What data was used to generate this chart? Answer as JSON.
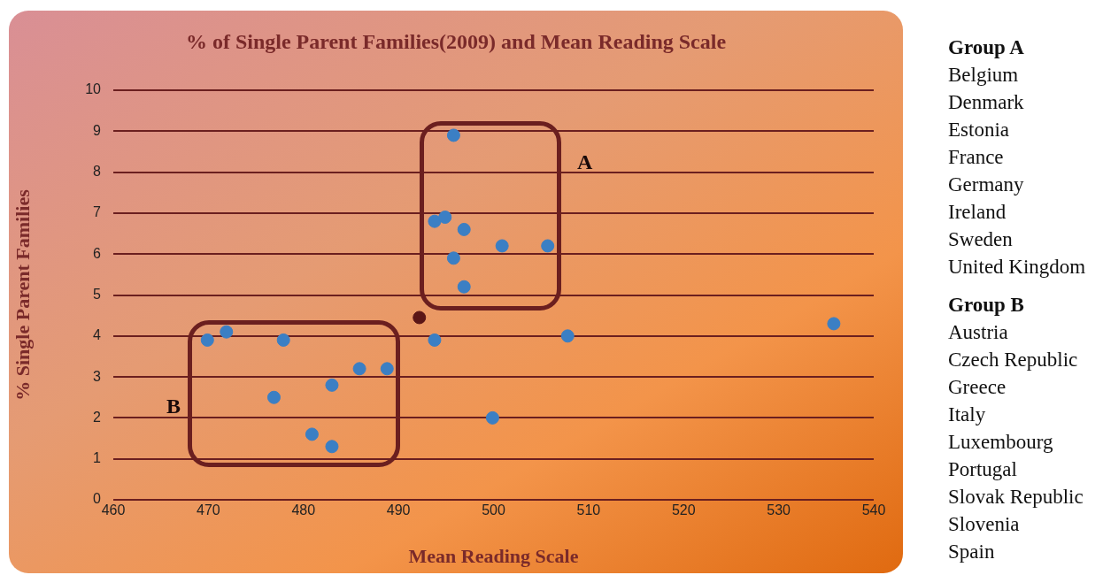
{
  "chart_data": {
    "type": "scatter",
    "title": "% of Single Parent Families(2009) and Mean Reading Scale",
    "xlabel": "Mean Reading Scale",
    "ylabel": "% Single Parent Families",
    "series": [
      {
        "color": "#3b7fc4",
        "x": [
          469.9,
          471.9,
          477.9,
          476.9,
          483,
          480.9,
          483,
          485.9,
          488.8,
          495.8,
          493.8,
          494.9,
          496.9,
          500.9,
          505.7,
          495.8,
          496.9,
          493.8,
          507.8,
          499.9,
          535.8
        ],
        "values": [
          3.9,
          4.1,
          3.9,
          2.5,
          2.8,
          1.6,
          1.3,
          3.2,
          3.2,
          8.9,
          6.8,
          6.9,
          6.6,
          6.2,
          6.2,
          5.9,
          5.2,
          3.9,
          4.0,
          2.0,
          4.3
        ]
      },
      {
        "color": "#5a1616",
        "x": [
          492.2
        ],
        "values": [
          4.45
        ]
      }
    ],
    "xlim": [
      460,
      540
    ],
    "xticks": [
      460,
      470,
      480,
      490,
      500,
      510,
      520,
      530,
      540
    ],
    "ylim": [
      0,
      10
    ],
    "yticks": [
      0,
      1,
      2,
      3,
      4,
      5,
      6,
      7,
      8,
      9,
      10
    ],
    "grid": "y",
    "marker": "circle",
    "legend": false,
    "annotations": [
      "A",
      "B",
      "Group A\nBelgium\nDenmark\nEstonia\nFrance\nGermany\nIreland\nSweden\nUnited Kingdom",
      "Group B\nAustria\nCzech Republic\nGreece\nItaly\nLuxembourg\nPortugal\nSlovak Republic\nSlovenia\nSpain"
    ]
  }
}
